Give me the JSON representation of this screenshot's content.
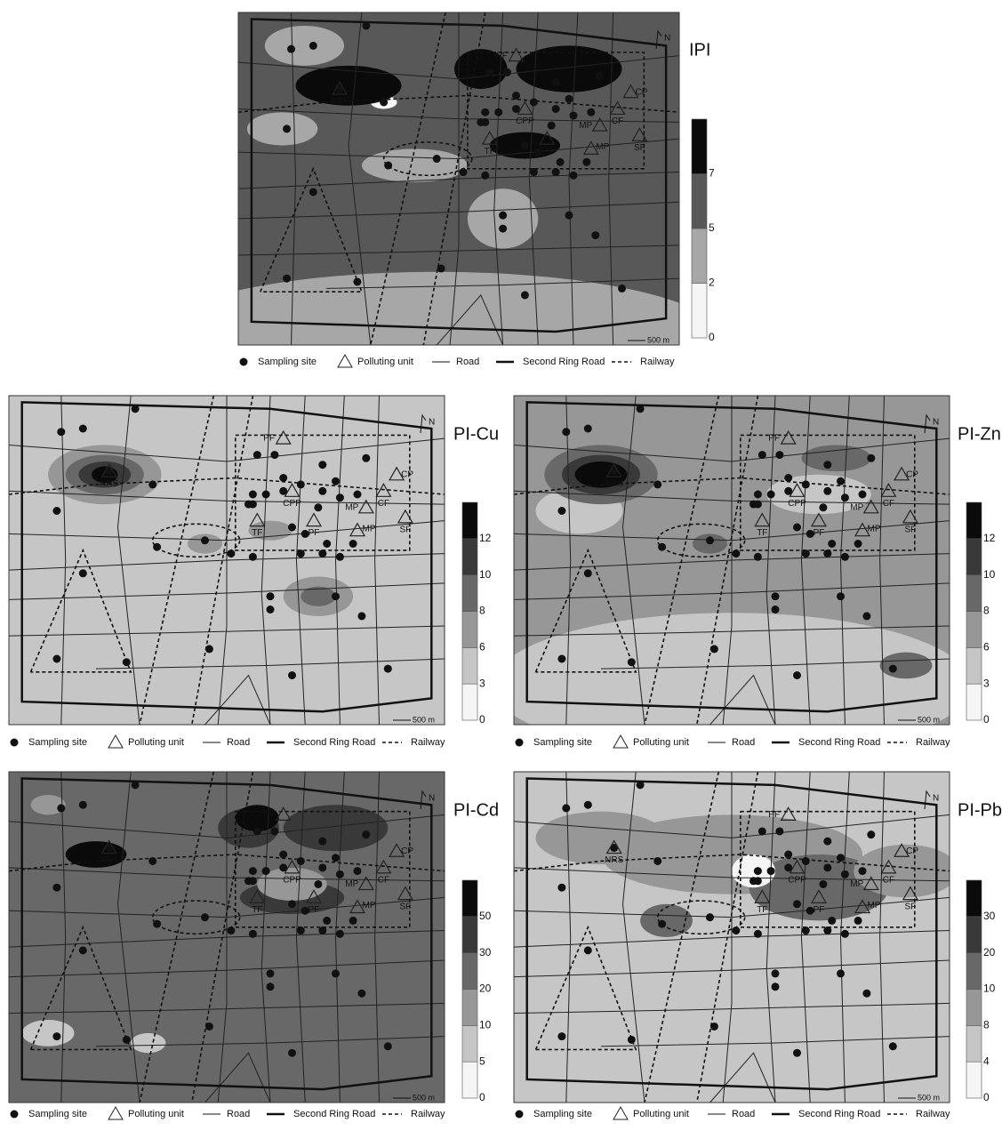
{
  "panels": [
    {
      "title": "IPI",
      "colorbar_ticks": [
        0,
        2,
        5,
        7
      ]
    },
    {
      "title": "PI-Cu",
      "colorbar_ticks": [
        0,
        3,
        6,
        8,
        10,
        12
      ]
    },
    {
      "title": "PI-Zn",
      "colorbar_ticks": [
        0,
        3,
        6,
        8,
        10,
        12
      ]
    },
    {
      "title": "PI-Cd",
      "colorbar_ticks": [
        0,
        5,
        10,
        20,
        30,
        50
      ]
    },
    {
      "title": "PI-Pb",
      "colorbar_ticks": [
        0,
        4,
        8,
        10,
        20,
        30
      ]
    }
  ],
  "unit_labels": [
    "NRS",
    "PF",
    "CP",
    "CPP",
    "CF",
    "MP",
    "TF",
    "PF",
    "MP",
    "SF"
  ],
  "legend": [
    "Sampling site",
    "Polluting unit",
    "Road",
    "Second Ring Road",
    "Railway"
  ],
  "scale_bar": "500 m",
  "north": "N"
}
